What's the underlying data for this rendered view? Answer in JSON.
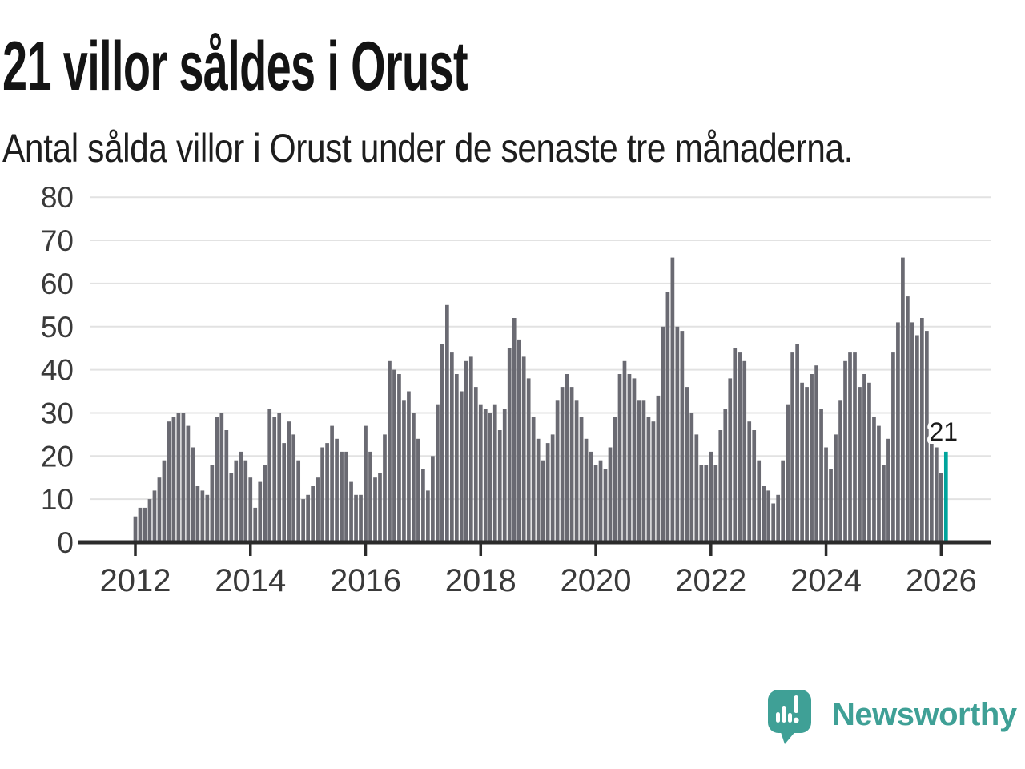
{
  "header": {
    "title": "21 villor såldes i Orust",
    "subtitle": "Antal sålda villor i Orust under de senaste tre månaderna."
  },
  "annotation": {
    "value_label": "21"
  },
  "brand": {
    "name": "Newsworthy"
  },
  "chart_data": {
    "type": "bar",
    "title": "21 villor såldes i Orust",
    "subtitle": "Antal sålda villor i Orust under de senaste tre månaderna.",
    "frequency": "monthly",
    "x_start": "2012-01",
    "x_end": "2026-02",
    "values": [
      6,
      8,
      8,
      10,
      12,
      15,
      19,
      28,
      29,
      30,
      30,
      27,
      22,
      13,
      12,
      11,
      18,
      29,
      30,
      26,
      16,
      19,
      21,
      19,
      15,
      8,
      14,
      18,
      31,
      29,
      30,
      23,
      28,
      25,
      19,
      10,
      11,
      13,
      15,
      22,
      23,
      27,
      24,
      21,
      21,
      14,
      11,
      11,
      27,
      21,
      15,
      16,
      25,
      42,
      40,
      39,
      33,
      35,
      30,
      24,
      17,
      12,
      20,
      32,
      46,
      55,
      44,
      39,
      35,
      42,
      43,
      36,
      32,
      31,
      30,
      32,
      26,
      31,
      45,
      52,
      47,
      43,
      38,
      29,
      24,
      19,
      23,
      25,
      33,
      36,
      39,
      36,
      33,
      29,
      24,
      21,
      18,
      19,
      17,
      22,
      29,
      39,
      42,
      39,
      38,
      33,
      33,
      29,
      28,
      34,
      50,
      58,
      66,
      50,
      49,
      36,
      30,
      25,
      18,
      18,
      21,
      18,
      26,
      31,
      38,
      45,
      44,
      42,
      28,
      26,
      19,
      13,
      12,
      9,
      11,
      19,
      32,
      44,
      46,
      37,
      36,
      39,
      41,
      31,
      22,
      17,
      25,
      33,
      42,
      44,
      44,
      36,
      39,
      37,
      29,
      27,
      18,
      24,
      44,
      51,
      66,
      57,
      51,
      48,
      52,
      49,
      23,
      22,
      16,
      21
    ],
    "highlight_last": true,
    "highlight_value": 21,
    "highlight_label": "21",
    "ylim": [
      0,
      80
    ],
    "yticks": [
      0,
      10,
      20,
      30,
      40,
      50,
      60,
      70,
      80
    ],
    "xticks": [
      "2012",
      "2014",
      "2016",
      "2018",
      "2020",
      "2022",
      "2024",
      "2026"
    ],
    "grid": true,
    "legend": "none",
    "colors": {
      "bar": "#6A6A72",
      "highlight": "#00A49C",
      "grid": "#E2E2E2",
      "axis": "#2B2B2B",
      "tick_label": "#3A3A3A",
      "annotation": "#1A1A1A",
      "brand": "#3FA096"
    }
  }
}
